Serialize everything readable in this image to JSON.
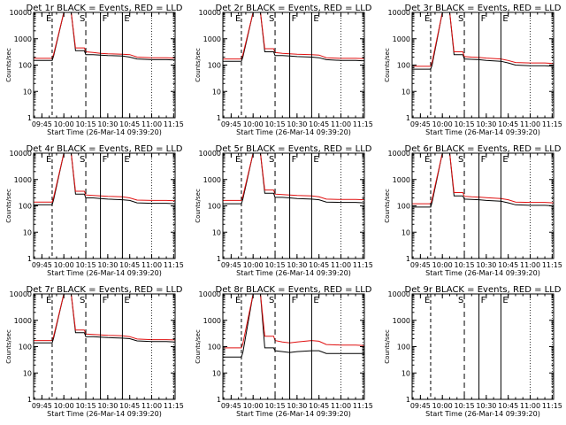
{
  "figure": {
    "ylabel": "Counts/sec",
    "ylim": [
      1,
      10000
    ],
    "y_ticks": [
      "1",
      "10",
      "100",
      "1000",
      "10000"
    ],
    "x_ticks": [
      "09:45",
      "10:00",
      "10:15",
      "10:30",
      "10:45",
      "11:00",
      "11:15"
    ],
    "xlabel": "Start Time (26-Mar-14 09:39:20)",
    "colors": {
      "events": "#000000",
      "lld": "#e01010",
      "axes": "#000000"
    }
  },
  "chart_data": [
    {
      "type": "line",
      "title": "Det 1r  BLACK = Events, RED = LLD",
      "markers": [
        "E",
        "S",
        "F",
        "E"
      ],
      "has_data": true,
      "series": [
        {
          "x": [
            "09:39",
            "09:52",
            "09:53",
            "10:00",
            "10:05",
            "10:08",
            "10:14",
            "10:15",
            "10:20",
            "10:25",
            "10:30",
            "10:40",
            "10:45",
            "10:50",
            "11:00",
            "11:10",
            "11:16"
          ],
          "values": [
            150,
            150,
            220,
            10000,
            10000,
            350,
            350,
            250,
            250,
            240,
            230,
            220,
            200,
            170,
            160,
            160,
            155
          ]
        },
        {
          "x": [
            "09:39",
            "09:52",
            "09:53",
            "10:00",
            "10:05",
            "10:08",
            "10:14",
            "10:15",
            "10:20",
            "10:25",
            "10:30",
            "10:40",
            "10:45",
            "10:50",
            "11:00",
            "11:10",
            "11:16"
          ],
          "values": [
            180,
            180,
            260,
            10000,
            10000,
            450,
            450,
            320,
            300,
            280,
            270,
            260,
            250,
            200,
            190,
            190,
            185
          ]
        }
      ]
    },
    {
      "type": "line",
      "title": "Det 2r  BLACK = Events, RED = LLD",
      "markers": [
        "E",
        "S",
        "F",
        "E"
      ],
      "has_data": true,
      "series": [
        {
          "x": [
            "09:39",
            "09:52",
            "09:53",
            "10:00",
            "10:05",
            "10:08",
            "10:14",
            "10:15",
            "10:20",
            "10:25",
            "10:30",
            "10:40",
            "10:45",
            "10:50",
            "11:00",
            "11:10",
            "11:16"
          ],
          "values": [
            140,
            140,
            200,
            10000,
            10000,
            320,
            320,
            230,
            230,
            220,
            210,
            200,
            190,
            160,
            150,
            150,
            145
          ]
        },
        {
          "x": [
            "09:39",
            "09:52",
            "09:53",
            "10:00",
            "10:05",
            "10:08",
            "10:14",
            "10:15",
            "10:20",
            "10:25",
            "10:30",
            "10:40",
            "10:45",
            "10:50",
            "11:00",
            "11:10",
            "11:16"
          ],
          "values": [
            170,
            170,
            250,
            10000,
            10000,
            420,
            420,
            300,
            280,
            270,
            260,
            250,
            240,
            190,
            180,
            180,
            175
          ]
        }
      ]
    },
    {
      "type": "line",
      "title": "Det 3r  BLACK = Events, RED = LLD",
      "markers": [
        "E",
        "S",
        "F",
        "E"
      ],
      "has_data": true,
      "series": [
        {
          "x": [
            "09:39",
            "09:52",
            "09:53",
            "10:00",
            "10:05",
            "10:08",
            "10:14",
            "10:15",
            "10:20",
            "10:25",
            "10:30",
            "10:40",
            "10:45",
            "10:50",
            "11:00",
            "11:10",
            "11:16"
          ],
          "values": [
            70,
            70,
            100,
            10000,
            10000,
            250,
            250,
            170,
            165,
            160,
            150,
            140,
            120,
            100,
            95,
            95,
            90
          ]
        },
        {
          "x": [
            "09:39",
            "09:52",
            "09:53",
            "10:00",
            "10:05",
            "10:08",
            "10:14",
            "10:15",
            "10:20",
            "10:25",
            "10:30",
            "10:40",
            "10:45",
            "10:50",
            "11:00",
            "11:10",
            "11:16"
          ],
          "values": [
            90,
            90,
            130,
            10000,
            10000,
            320,
            320,
            210,
            200,
            195,
            185,
            170,
            150,
            125,
            120,
            120,
            115
          ]
        }
      ]
    },
    {
      "type": "line",
      "title": "Det 4r  BLACK = Events, RED = LLD",
      "markers": [
        "E",
        "S",
        "F",
        "E"
      ],
      "has_data": true,
      "series": [
        {
          "x": [
            "09:39",
            "09:52",
            "09:53",
            "10:00",
            "10:05",
            "10:08",
            "10:14",
            "10:15",
            "10:20",
            "10:25",
            "10:30",
            "10:40",
            "10:45",
            "10:50",
            "11:00",
            "11:10",
            "11:16"
          ],
          "values": [
            110,
            110,
            170,
            10000,
            10000,
            280,
            280,
            200,
            200,
            190,
            180,
            170,
            160,
            130,
            125,
            125,
            120
          ]
        },
        {
          "x": [
            "09:39",
            "09:52",
            "09:53",
            "10:00",
            "10:05",
            "10:08",
            "10:14",
            "10:15",
            "10:20",
            "10:25",
            "10:30",
            "10:40",
            "10:45",
            "10:50",
            "11:00",
            "11:10",
            "11:16"
          ],
          "values": [
            140,
            140,
            210,
            10000,
            10000,
            360,
            360,
            260,
            250,
            240,
            230,
            220,
            200,
            165,
            160,
            160,
            155
          ]
        }
      ]
    },
    {
      "type": "line",
      "title": "Det 5r  BLACK = Events, RED = LLD",
      "markers": [
        "E",
        "S",
        "F",
        "E"
      ],
      "has_data": true,
      "series": [
        {
          "x": [
            "09:39",
            "09:52",
            "09:53",
            "10:00",
            "10:05",
            "10:08",
            "10:14",
            "10:15",
            "10:20",
            "10:25",
            "10:30",
            "10:40",
            "10:45",
            "10:50",
            "11:00",
            "11:10",
            "11:16"
          ],
          "values": [
            120,
            120,
            180,
            10000,
            10000,
            300,
            300,
            210,
            210,
            200,
            190,
            180,
            170,
            140,
            135,
            135,
            130
          ]
        },
        {
          "x": [
            "09:39",
            "09:52",
            "09:53",
            "10:00",
            "10:05",
            "10:08",
            "10:14",
            "10:15",
            "10:20",
            "10:25",
            "10:30",
            "10:40",
            "10:45",
            "10:50",
            "11:00",
            "11:10",
            "11:16"
          ],
          "values": [
            160,
            160,
            230,
            10000,
            10000,
            400,
            400,
            280,
            270,
            260,
            250,
            240,
            220,
            180,
            175,
            175,
            170
          ]
        }
      ]
    },
    {
      "type": "line",
      "title": "Det 6r  BLACK = Events, RED = LLD",
      "markers": [
        "E",
        "S",
        "F",
        "E"
      ],
      "has_data": true,
      "series": [
        {
          "x": [
            "09:39",
            "09:52",
            "09:53",
            "10:00",
            "10:05",
            "10:08",
            "10:14",
            "10:15",
            "10:20",
            "10:25",
            "10:30",
            "10:40",
            "10:45",
            "10:50",
            "11:00",
            "11:10",
            "11:16"
          ],
          "values": [
            90,
            90,
            140,
            10000,
            10000,
            240,
            240,
            180,
            175,
            170,
            160,
            150,
            130,
            110,
            105,
            105,
            100
          ]
        },
        {
          "x": [
            "09:39",
            "09:52",
            "09:53",
            "10:00",
            "10:05",
            "10:08",
            "10:14",
            "10:15",
            "10:20",
            "10:25",
            "10:30",
            "10:40",
            "10:45",
            "10:50",
            "11:00",
            "11:10",
            "11:16"
          ],
          "values": [
            120,
            120,
            180,
            10000,
            10000,
            320,
            320,
            230,
            220,
            215,
            205,
            190,
            170,
            140,
            135,
            135,
            130
          ]
        }
      ]
    },
    {
      "type": "line",
      "title": "Det 7r  BLACK = Events, RED = LLD",
      "markers": [
        "E",
        "S",
        "F",
        "E"
      ],
      "has_data": true,
      "series": [
        {
          "x": [
            "09:39",
            "09:52",
            "09:53",
            "10:00",
            "10:05",
            "10:08",
            "10:14",
            "10:15",
            "10:20",
            "10:25",
            "10:30",
            "10:40",
            "10:45",
            "10:50",
            "11:00",
            "11:10",
            "11:16"
          ],
          "values": [
            140,
            140,
            210,
            10000,
            10000,
            340,
            340,
            240,
            240,
            230,
            220,
            210,
            200,
            165,
            155,
            155,
            150
          ]
        },
        {
          "x": [
            "09:39",
            "09:52",
            "09:53",
            "10:00",
            "10:05",
            "10:08",
            "10:14",
            "10:15",
            "10:20",
            "10:25",
            "10:30",
            "10:40",
            "10:45",
            "10:50",
            "11:00",
            "11:10",
            "11:16"
          ],
          "values": [
            170,
            170,
            250,
            10000,
            10000,
            430,
            430,
            300,
            290,
            280,
            270,
            260,
            240,
            195,
            185,
            185,
            180
          ]
        }
      ]
    },
    {
      "type": "line",
      "title": "Det 8r  BLACK = Events, RED = LLD",
      "markers": [
        "E",
        "S",
        "F",
        "E"
      ],
      "has_data": true,
      "series": [
        {
          "x": [
            "09:39",
            "09:52",
            "09:53",
            "10:00",
            "10:05",
            "10:08",
            "10:14",
            "10:15",
            "10:20",
            "10:25",
            "10:30",
            "10:40",
            "10:45",
            "10:50",
            "11:00",
            "11:10",
            "11:16"
          ],
          "values": [
            40,
            40,
            60,
            10000,
            10000,
            90,
            90,
            70,
            65,
            60,
            65,
            70,
            70,
            55,
            55,
            55,
            55
          ]
        },
        {
          "x": [
            "09:39",
            "09:52",
            "09:53",
            "10:00",
            "10:05",
            "10:08",
            "10:14",
            "10:15",
            "10:20",
            "10:25",
            "10:30",
            "10:40",
            "10:45",
            "10:50",
            "11:00",
            "11:10",
            "11:16"
          ],
          "values": [
            90,
            90,
            130,
            10000,
            10000,
            250,
            250,
            170,
            150,
            140,
            150,
            170,
            160,
            120,
            115,
            115,
            110
          ]
        }
      ]
    },
    {
      "type": "line",
      "title": "Det 9r  BLACK = Events, RED = LLD",
      "markers": [
        "E",
        "S",
        "F",
        "E"
      ],
      "has_data": false,
      "series": []
    }
  ]
}
